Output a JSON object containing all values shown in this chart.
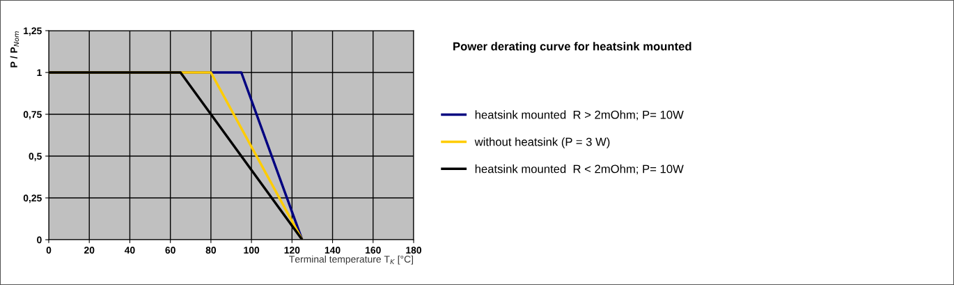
{
  "chart_data": {
    "type": "line",
    "title": "Power derating curve for heatsink mounted",
    "xlabel": "Terminal temperature T$_{K}$ [°C]",
    "ylabel": "P / P$_{Nom}$",
    "series": [
      {
        "name": "heatsink mounted  R > 2mOhm; P= 10W",
        "color": "#000080",
        "x": [
          0,
          95,
          125
        ],
        "values": [
          1,
          1,
          0
        ]
      },
      {
        "name": "without heatsink (P = 3 W)",
        "color": "#ffcc00",
        "x": [
          0,
          80,
          125
        ],
        "values": [
          1,
          1,
          0
        ]
      },
      {
        "name": "heatsink mounted  R < 2mOhm; P= 10W",
        "color": "#000000",
        "x": [
          0,
          65,
          125
        ],
        "values": [
          1,
          1,
          0
        ]
      }
    ],
    "xlim": [
      0,
      180
    ],
    "xticks": [
      0,
      20,
      40,
      60,
      80,
      100,
      120,
      140,
      160,
      180
    ],
    "ylim": [
      0,
      1.25
    ],
    "yticks": [
      {
        "value": 0,
        "label": "0"
      },
      {
        "value": 0.25,
        "label": "0,25"
      },
      {
        "value": 0.5,
        "label": "0,5"
      },
      {
        "value": 0.75,
        "label": "0,75"
      },
      {
        "value": 1,
        "label": "1"
      },
      {
        "value": 1.25,
        "label": "1,25"
      }
    ],
    "grid": true,
    "legend": "right",
    "marker": "none",
    "line_style": "solid"
  }
}
